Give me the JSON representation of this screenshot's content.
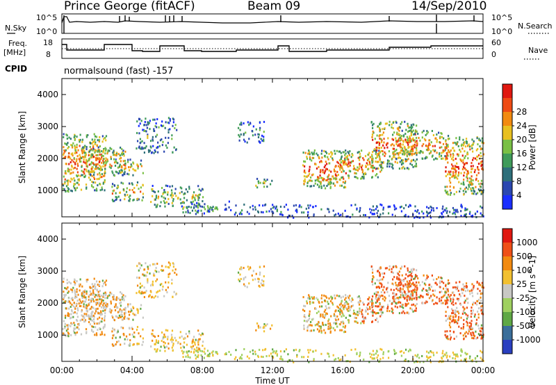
{
  "header": {
    "station": "Prince George (fitACF)",
    "beam": "Beam 09",
    "date": "14/Sep/2010"
  },
  "strips": {
    "nsky_label": "N.Sky",
    "nsky_ticks": [
      "10^5",
      "10^0"
    ],
    "nsearch_label": "N.Search",
    "nsearch_ticks": [
      "10^5",
      "10^0"
    ],
    "freq_label_line1": "Freq.",
    "freq_label_line2": "[MHz]",
    "freq_ticks": [
      "18",
      "8"
    ],
    "nave_label": "Nave",
    "nave_ticks": [
      "60",
      "0"
    ],
    "cpid_label": "CPID",
    "cpid_value": "normalsound (fast) -157"
  },
  "chart_data": [
    {
      "type": "heatmap",
      "panel": "power",
      "ylabel": "Slant Range [km]",
      "ylim": [
        180,
        4500
      ],
      "yticks": [
        "1000",
        "2000",
        "3000",
        "4000"
      ],
      "colorbar": {
        "label": "Power [dB]",
        "ticks": [
          "4",
          "8",
          "12",
          "16",
          "20",
          "24",
          "28"
        ],
        "colors": [
          "#1a2eff",
          "#2b47b0",
          "#2e6f7a",
          "#3f9b5a",
          "#7ac045",
          "#e8c020",
          "#f28a10",
          "#ef4b14",
          "#e01810"
        ]
      }
    },
    {
      "type": "heatmap",
      "panel": "velocity",
      "ylabel": "Slant Range [km]",
      "ylim": [
        180,
        4500
      ],
      "yticks": [
        "1000",
        "2000",
        "3000",
        "4000"
      ],
      "xlabel": "Time UT",
      "xticks": [
        "00:00",
        "04:00",
        "08:00",
        "12:00",
        "16:00",
        "20:00",
        "00:00"
      ],
      "colorbar": {
        "label": "Velocity [m s^-1]",
        "ticks": [
          "1000",
          "500",
          "100",
          "25",
          "-25",
          "-100",
          "-500",
          "-1000"
        ],
        "colors": [
          "#2a3fc0",
          "#3a6e9a",
          "#5fa845",
          "#9fd060",
          "#c8c8c4",
          "#f2c030",
          "#f28a10",
          "#ef5018",
          "#e01810"
        ]
      }
    }
  ]
}
